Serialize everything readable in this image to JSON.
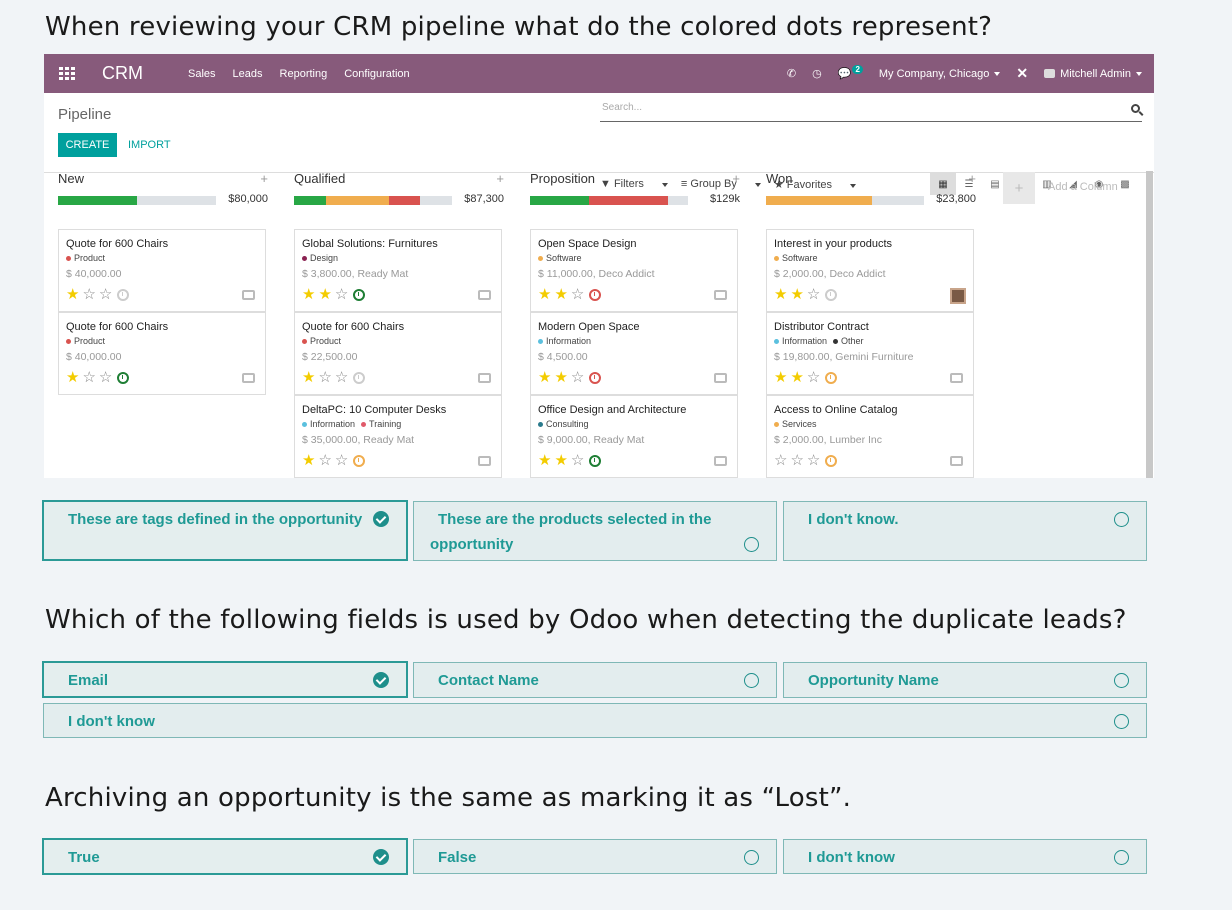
{
  "questions": [
    {
      "text": "When reviewing your CRM pipeline what do the colored dots represent?",
      "answers": [
        {
          "label": "These are tags defined in the opportunity",
          "selected": true
        },
        {
          "label": "These are the products selected in the",
          "label2": "opportunity",
          "selected": false
        },
        {
          "label": "I don't know.",
          "selected": false
        }
      ]
    },
    {
      "text": "Which of the following fields is used by Odoo when detecting the duplicate leads?",
      "answers": [
        {
          "label": "Email",
          "selected": true
        },
        {
          "label": "Contact Name",
          "selected": false
        },
        {
          "label": "Opportunity Name",
          "selected": false
        },
        {
          "label": "I don't know",
          "selected": false
        }
      ]
    },
    {
      "text": "Archiving an opportunity is the same as marking it as “Lost”.",
      "answers": [
        {
          "label": "True",
          "selected": true
        },
        {
          "label": "False",
          "selected": false
        },
        {
          "label": "I don't know",
          "selected": false
        }
      ]
    }
  ],
  "app": {
    "brand": "CRM",
    "menu": [
      "Sales",
      "Leads",
      "Reporting",
      "Configuration"
    ],
    "messages_count": "2",
    "company": "My Company, Chicago",
    "user": "Mitchell Admin",
    "breadcrumb": "Pipeline",
    "create_label": "CREATE",
    "import_label": "IMPORT",
    "search_placeholder": "Search...",
    "filters_label": "Filters",
    "groupby_label": "Group By",
    "favorites_label": "Favorites",
    "add_column_label": "Add a Column",
    "accent": "#00a09d",
    "topbar_color": "#875a7b"
  },
  "columns": [
    {
      "name": "New",
      "amount": "$80,000",
      "progress": [
        {
          "color": "#28a745",
          "fraction": 0.5
        }
      ],
      "cards": [
        {
          "title": "Quote for 600 Chairs",
          "tags": [
            {
              "name": "Product",
              "color": "#d9534f"
            }
          ],
          "sub": "$ 40,000.00",
          "stars": 1,
          "activity": "grey",
          "end": "camera"
        },
        {
          "title": "Quote for 600 Chairs",
          "tags": [
            {
              "name": "Product",
              "color": "#d9534f"
            }
          ],
          "sub": "$ 40,000.00",
          "stars": 1,
          "activity": "green",
          "end": "camera"
        }
      ]
    },
    {
      "name": "Qualified",
      "amount": "$87,300",
      "progress": [
        {
          "color": "#28a745",
          "fraction": 0.2
        },
        {
          "color": "#f0ad4e",
          "fraction": 0.4
        },
        {
          "color": "#d9534f",
          "fraction": 0.2
        }
      ],
      "cards": [
        {
          "title": "Global Solutions: Furnitures",
          "tags": [
            {
              "name": "Design",
              "color": "#8b2252"
            }
          ],
          "sub": "$ 3,800.00, Ready Mat",
          "stars": 2,
          "activity": "green",
          "end": "camera"
        },
        {
          "title": "Quote for 600 Chairs",
          "tags": [
            {
              "name": "Product",
              "color": "#d9534f"
            }
          ],
          "sub": "$ 22,500.00",
          "stars": 1,
          "activity": "grey",
          "end": "camera"
        },
        {
          "title": "DeltaPC: 10 Computer Desks",
          "tags": [
            {
              "name": "Information",
              "color": "#5bc0de"
            },
            {
              "name": "Training",
              "color": "#e05a6a"
            }
          ],
          "sub": "$ 35,000.00, Ready Mat",
          "stars": 1,
          "activity": "orange",
          "end": "camera"
        }
      ]
    },
    {
      "name": "Proposition",
      "amount": "$129k",
      "progress": [
        {
          "color": "#28a745",
          "fraction": 0.375
        },
        {
          "color": "#d9534f",
          "fraction": 0.5
        }
      ],
      "cards": [
        {
          "title": "Open Space Design",
          "tags": [
            {
              "name": "Software",
              "color": "#f0ad4e"
            }
          ],
          "sub": "$ 11,000.00, Deco Addict",
          "stars": 2,
          "activity": "red",
          "end": "camera"
        },
        {
          "title": "Modern Open Space",
          "tags": [
            {
              "name": "Information",
              "color": "#5bc0de"
            }
          ],
          "sub": "$ 4,500.00",
          "stars": 2,
          "activity": "red",
          "end": "camera"
        },
        {
          "title": "Office Design and Architecture",
          "tags": [
            {
              "name": "Consulting",
              "color": "#2a7a8c"
            }
          ],
          "sub": "$ 9,000.00, Ready Mat",
          "stars": 2,
          "activity": "green",
          "end": "camera"
        }
      ]
    },
    {
      "name": "Won",
      "amount": "$23,800",
      "progress": [
        {
          "color": "#f0ad4e",
          "fraction": 0.67
        }
      ],
      "cards": [
        {
          "title": "Interest in your products",
          "tags": [
            {
              "name": "Software",
              "color": "#f0ad4e"
            }
          ],
          "sub": "$ 2,000.00, Deco Addict",
          "stars": 2,
          "activity": "grey",
          "end": "avatar"
        },
        {
          "title": "Distributor Contract",
          "tags": [
            {
              "name": "Information",
              "color": "#5bc0de"
            },
            {
              "name": "Other",
              "color": "#333333"
            }
          ],
          "sub": "$ 19,800.00, Gemini Furniture",
          "stars": 2,
          "activity": "orange",
          "end": "camera"
        },
        {
          "title": "Access to Online Catalog",
          "tags": [
            {
              "name": "Services",
              "color": "#f0ad4e"
            }
          ],
          "sub": "$ 2,000.00, Lumber Inc",
          "stars": 0,
          "activity": "orange",
          "end": "camera"
        }
      ]
    }
  ]
}
